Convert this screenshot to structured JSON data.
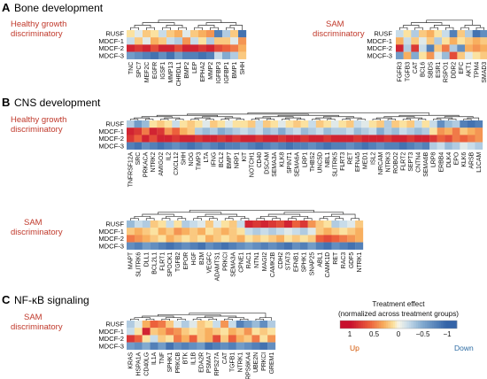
{
  "panels": [
    {
      "letter": "A",
      "title": "Bone development"
    },
    {
      "letter": "B",
      "title": "CNS development"
    },
    {
      "letter": "C",
      "title": "NF-κB signaling"
    }
  ],
  "groups": {
    "healthy": "Healthy growth\ndiscriminatory",
    "sam": "SAM\ndiscriminatory"
  },
  "rows": [
    "RUSF",
    "MDCF-1",
    "MDCF-2",
    "MDCF-3"
  ],
  "legend": {
    "title_line1": "Treatment effect",
    "title_line2": "(normalized across treatment groups)",
    "ticks": [
      "1",
      "0.5",
      "0",
      "−0.5",
      "−1"
    ],
    "up": "Up",
    "down": "Down",
    "colors": [
      "#c8102e",
      "#e8563a",
      "#f6a35a",
      "#fbe3a1",
      "#f7f5e8",
      "#bcd5e6",
      "#7aa9cf",
      "#3b6fae"
    ]
  },
  "heatmaps": [
    {
      "id": "A-healthy",
      "columns": [
        "TNC",
        "SPC7",
        "MEF2C",
        "EGFR",
        "IGSF1",
        "MMP13",
        "CHRDL1",
        "BMP2",
        "LEP",
        "EPHA2",
        "MMP2",
        "IGFBP3",
        "IGFBP1",
        "BMP1",
        "SHH"
      ],
      "values": [
        [
          0.1,
          -0.1,
          0.2,
          0.1,
          -0.2,
          0.2,
          0.3,
          -0.1,
          0.2,
          0.3,
          0.4,
          -0.8,
          -0.3,
          0.2,
          -0.9
        ],
        [
          -0.2,
          0.2,
          -0.1,
          0.3,
          0.2,
          -0.2,
          -0.3,
          0.4,
          -0.2,
          0.1,
          -0.3,
          0.2,
          0.2,
          -0.1,
          0.4
        ],
        [
          0.9,
          0.8,
          0.9,
          0.7,
          0.9,
          0.9,
          0.7,
          0.9,
          0.9,
          0.8,
          0.9,
          0.7,
          0.6,
          0.5,
          0.3
        ],
        [
          -0.6,
          -0.7,
          -0.8,
          -0.9,
          -0.7,
          -0.9,
          -0.6,
          -0.8,
          -0.8,
          -0.9,
          -0.8,
          -0.2,
          -0.5,
          -0.3,
          0.2
        ]
      ]
    },
    {
      "id": "A-sam",
      "columns": [
        "FGFR3",
        "TGFB3",
        "CAT",
        "BCL6",
        "SBDS",
        "ESR1",
        "RSPO1",
        "DDR2",
        "EFC",
        "AKT1",
        "TPM4",
        "SMAD3"
      ],
      "values": [
        [
          -0.2,
          0.1,
          -0.3,
          0.2,
          0.3,
          0.1,
          -0.2,
          -0.8,
          0.2,
          -0.3,
          -0.9,
          -0.7
        ],
        [
          0.3,
          -0.2,
          0.2,
          -0.1,
          0.2,
          -0.3,
          0.1,
          0.3,
          0.1,
          0.2,
          0.3,
          0.2
        ],
        [
          0.9,
          -0.3,
          0.8,
          -0.2,
          -0.8,
          0.2,
          0.5,
          -0.3,
          -0.7,
          0.3,
          0.4,
          0.3
        ],
        [
          -0.6,
          0.3,
          -0.5,
          0.1,
          0.4,
          -0.1,
          -0.4,
          0.7,
          0.2,
          -0.1,
          0.1,
          0.2
        ]
      ]
    },
    {
      "id": "B-healthy",
      "columns": [
        "TNFRSF12A",
        "SRC",
        "PRKACA",
        "NTRK2",
        "AMIGO2",
        "IL2",
        "CXCL12",
        "SHH",
        "NOG",
        "TIMP3",
        "LTA",
        "IFNG",
        "BCL2",
        "BMP7",
        "NRP1",
        "KIT",
        "NOTCH1",
        "CD40",
        "DSCAM",
        "SEMA3A",
        "KLK8",
        "SPINT1",
        "SEMA6A",
        "LRP1",
        "THBS2",
        "UNC5D",
        "NBL1",
        "SLITRK5",
        "FLRT3",
        "RET",
        "EFNA5",
        "MED1",
        "ISL2",
        "NRCAM",
        "NTRK3",
        "ROBO2",
        "FLRT2",
        "SEPT3",
        "CNTN4",
        "SEMA6B",
        "LRP8",
        "ERBB4",
        "DLK4",
        "EPO",
        "KLK6",
        "ARSB",
        "L1CAM"
      ],
      "values": [
        [
          -0.3,
          -0.6,
          -0.4,
          0.1,
          0.2,
          0.1,
          -0.2,
          0.1,
          0.2,
          0.1,
          -0.1,
          0.2,
          0.1,
          -0.1,
          0.1,
          0.1,
          0.2,
          -0.2,
          0.2,
          0.1,
          -0.1,
          0.1,
          0.2,
          0.1,
          -0.2,
          0.2,
          0.1,
          -0.1,
          0.1,
          0.2,
          -0.2,
          -0.1,
          0.1,
          0.2,
          -0.3,
          0.2,
          0.1,
          0.2,
          -0.2,
          0.1,
          -0.2,
          -0.7,
          -0.4,
          -0.3,
          -0.8,
          -0.9,
          -0.8
        ],
        [
          0.9,
          0.8,
          0.5,
          0.9,
          0.8,
          0.4,
          0.6,
          0.3,
          0.2,
          -0.3,
          -0.4,
          -0.3,
          -0.5,
          -0.4,
          -0.3,
          -0.2,
          -0.3,
          -0.2,
          -0.4,
          -0.3,
          -0.5,
          -0.3,
          -0.2,
          -0.4,
          -0.3,
          -0.2,
          -0.4,
          -0.3,
          -0.3,
          -0.2,
          -0.4,
          -0.3,
          -0.2,
          -0.5,
          -0.3,
          -0.4,
          -0.2,
          -0.3,
          -0.4,
          -0.3,
          0.1,
          0.4,
          0.3,
          0.5,
          0.2,
          0.3,
          0.4
        ],
        [
          0.8,
          0.6,
          0.9,
          0.7,
          0.9,
          0.9,
          0.8,
          0.9,
          0.9,
          0.8,
          0.9,
          0.9,
          0.8,
          0.9,
          0.8,
          0.9,
          0.9,
          0.8,
          0.9,
          0.9,
          0.8,
          0.9,
          0.9,
          0.8,
          0.9,
          0.9,
          0.8,
          0.9,
          0.9,
          0.9,
          0.8,
          0.9,
          0.9,
          0.9,
          0.8,
          0.9,
          0.9,
          0.8,
          0.9,
          0.9,
          0.8,
          0.6,
          0.7,
          0.5,
          0.6,
          0.5,
          0.4
        ],
        [
          -0.8,
          -0.9,
          -0.7,
          -0.8,
          -0.9,
          -0.8,
          -0.7,
          -0.8,
          -0.9,
          -0.8,
          -0.7,
          -0.8,
          -0.9,
          -0.8,
          -0.8,
          -0.7,
          -0.8,
          -0.9,
          -0.8,
          -0.7,
          -0.8,
          -0.9,
          -0.8,
          -0.8,
          -0.7,
          -0.8,
          -0.9,
          -0.8,
          -0.8,
          -0.7,
          -0.8,
          -0.9,
          -0.8,
          -0.7,
          -0.8,
          -0.8,
          -0.9,
          -0.8,
          -0.7,
          -0.8,
          -0.3,
          -0.2,
          -0.4,
          -0.3,
          -0.1,
          -0.2,
          -0.3
        ]
      ]
    },
    {
      "id": "B-sam",
      "columns": [
        "MAPT",
        "SLITRK6",
        "DLL1",
        "BCL2L1",
        "FLRT1",
        "SPOCK1",
        "TGFB2",
        "EPOR",
        "HGF",
        "B2M",
        "VEGFC",
        "ADAMTS1",
        "PRKCI",
        "SEMA3A",
        "CPNE1",
        "RAC1",
        "NTN1",
        "MAGI2",
        "CAMK2B",
        "CDH2",
        "STAT3",
        "EFNB1",
        "SPHK1",
        "SNAP25",
        "ABL1",
        "CAMK1D",
        "RET",
        "RAC3",
        "GDF5",
        "NTRK1"
      ],
      "values": [
        [
          -0.4,
          -0.2,
          -0.3,
          0.2,
          0.1,
          -0.2,
          0.1,
          -0.3,
          -0.2,
          -0.1,
          0.2,
          -0.1,
          0.1,
          0.2,
          -0.2,
          0.9,
          0.8,
          0.9,
          0.8,
          0.7,
          0.9,
          0.6,
          0.8,
          0.4,
          0.2,
          0.1,
          -0.3,
          -0.2,
          -0.1,
          0.2
        ],
        [
          0.2,
          0.3,
          0.2,
          0.1,
          0.3,
          0.2,
          0.4,
          0.3,
          0.2,
          0.3,
          0.1,
          0.2,
          0.3,
          0.2,
          0.1,
          -0.2,
          -0.3,
          -0.2,
          -0.3,
          -0.2,
          -0.1,
          -0.2,
          -0.3,
          -0.1,
          0.2,
          0.3,
          0.2,
          0.1,
          0.2,
          0.3
        ],
        [
          0.5,
          0.4,
          0.3,
          0.2,
          0.1,
          0.3,
          0.2,
          0.1,
          0.2,
          0.1,
          0.3,
          0.2,
          0.1,
          0.2,
          0.3,
          0.1,
          0.2,
          0.1,
          0.2,
          0.3,
          0.1,
          0.2,
          0.1,
          0.2,
          0.6,
          0.7,
          0.6,
          0.5,
          0.4,
          0.3
        ],
        [
          -0.7,
          -0.8,
          -0.6,
          -0.7,
          -0.8,
          -0.9,
          -0.8,
          -0.7,
          -0.8,
          -0.9,
          -0.7,
          -0.8,
          -0.9,
          -0.8,
          -0.7,
          -0.6,
          -0.7,
          -0.8,
          -0.7,
          -0.8,
          -0.9,
          -0.7,
          -0.8,
          -0.6,
          -0.8,
          -0.9,
          -0.7,
          -0.8,
          -0.9,
          -0.8
        ]
      ]
    },
    {
      "id": "C-sam",
      "columns": [
        "KRAS",
        "HSPA1A",
        "CD40LG",
        "IL1A",
        "TNF",
        "SPHK1",
        "PRKCB",
        "BTK",
        "IL1B",
        "EDA2R",
        "PSMA7",
        "RPS27A",
        "CAT",
        "TGFB1",
        "NTRK1",
        "RPS6KA4",
        "UBE2N",
        "PRKCI",
        "GREM1"
      ],
      "values": [
        [
          -0.3,
          -0.1,
          0.3,
          0.6,
          0.5,
          0.2,
          -0.1,
          -0.3,
          -0.1,
          0.2,
          0.1,
          -0.2,
          0.4,
          -0.2,
          -0.8,
          -0.6,
          -0.4,
          -0.7,
          -0.3
        ],
        [
          -0.2,
          0.1,
          0.9,
          0.2,
          0.3,
          0.5,
          0.4,
          0.2,
          0.1,
          0.2,
          0.3,
          0.2,
          0.1,
          0.3,
          0.2,
          0.4,
          0.1,
          0.2,
          0.1
        ],
        [
          0.8,
          0.6,
          0.1,
          -0.2,
          0.2,
          0.1,
          0.5,
          0.3,
          0.6,
          0.2,
          0.3,
          0.7,
          0.2,
          0.6,
          0.3,
          0.2,
          0.5,
          0.1,
          0.4
        ],
        [
          -0.6,
          -0.7,
          -0.5,
          -0.8,
          -0.6,
          -0.9,
          -0.7,
          -0.8,
          -0.7,
          -0.6,
          -0.9,
          -0.8,
          -0.7,
          -0.8,
          -0.6,
          -0.7,
          -0.8,
          -0.9,
          -0.7
        ]
      ]
    }
  ]
}
